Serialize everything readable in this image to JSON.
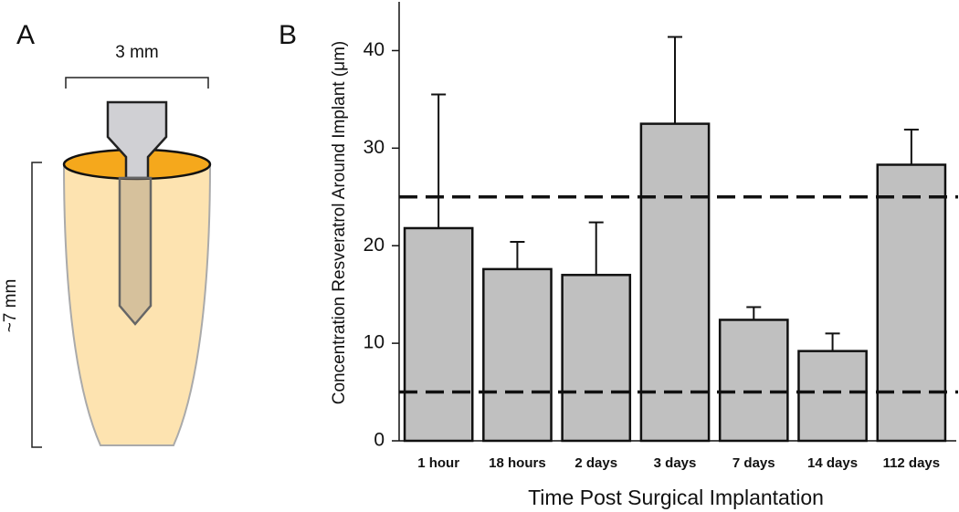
{
  "panel_a": {
    "label": "A",
    "width_label": "3 mm",
    "depth_label": "~7 mm"
  },
  "chart_data": {
    "type": "bar",
    "panel_label": "B",
    "xlabel": "Time Post Surgical Implantation",
    "ylabel": "Concentration Resveratrol Around Implant (μm)",
    "categories": [
      "1 hour",
      "18 hours",
      "2 days",
      "3 days",
      "7 days",
      "14 days",
      "112 days"
    ],
    "values": [
      21.8,
      17.6,
      17.0,
      32.5,
      12.4,
      9.2,
      28.3
    ],
    "errors": [
      13.7,
      2.8,
      5.4,
      8.9,
      1.3,
      1.8,
      3.6
    ],
    "color": "#c0c0c0",
    "reference_lines": [
      25,
      5
    ],
    "ylim": [
      0,
      45
    ],
    "yticks": [
      0,
      10,
      20,
      30,
      40
    ]
  }
}
